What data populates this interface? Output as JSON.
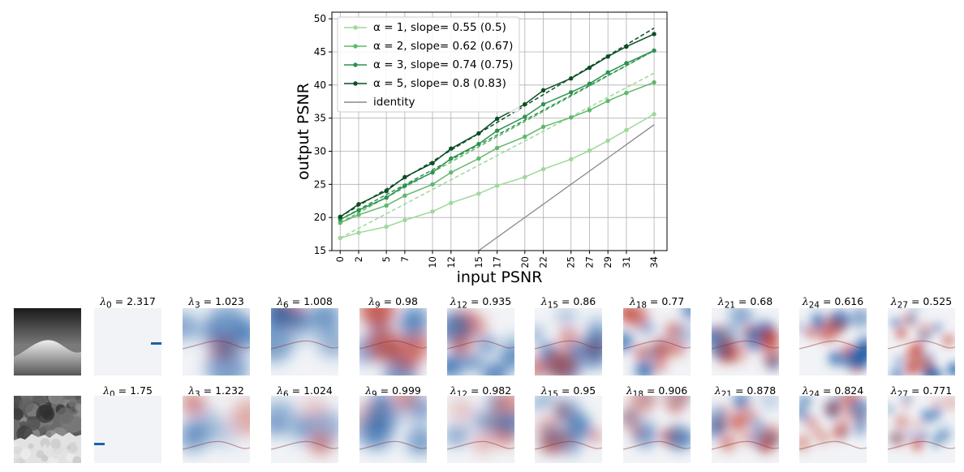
{
  "chart_data": {
    "type": "line",
    "title": "",
    "xlabel": "input PSNR",
    "ylabel": "output PSNR",
    "x": [
      0,
      2,
      5,
      7,
      10,
      12,
      15,
      17,
      20,
      22,
      25,
      27,
      29,
      31,
      34
    ],
    "xtick_labels": [
      "0",
      "2",
      "5",
      "7",
      "10",
      "12",
      "15",
      "17",
      "20",
      "22",
      "25",
      "27",
      "29",
      "31",
      "34"
    ],
    "ylim": [
      15,
      51
    ],
    "yticks": [
      15,
      20,
      25,
      30,
      35,
      40,
      45,
      50
    ],
    "grid": true,
    "legend_position": "top-left",
    "series": [
      {
        "name": "α = 1, slope= 0.55 (0.5)",
        "color": "#9fd89a",
        "values": [
          16.9,
          17.7,
          18.6,
          19.6,
          20.9,
          22.2,
          23.6,
          24.8,
          26.1,
          27.3,
          28.8,
          30.1,
          31.6,
          33.2,
          35.6
        ],
        "fit": [
          16.9,
          41.8
        ]
      },
      {
        "name": "α = 2, slope= 0.62 (0.67)",
        "color": "#5fb86a",
        "values": [
          19.2,
          20.4,
          21.8,
          23.3,
          25.0,
          26.8,
          28.9,
          30.5,
          32.2,
          33.7,
          35.1,
          36.2,
          37.6,
          38.8,
          40.4
        ],
        "fit": [
          19.2,
          45.2
        ]
      },
      {
        "name": "α = 3, slope= 0.74 (0.75)",
        "color": "#2e9150",
        "values": [
          19.7,
          21.1,
          23.0,
          24.8,
          26.8,
          28.9,
          31.1,
          33.1,
          35.2,
          37.1,
          38.9,
          40.2,
          41.9,
          43.3,
          45.2
        ],
        "fit": [
          19.7,
          45.2
        ]
      },
      {
        "name": "α = 5, slope= 0.8 (0.83)",
        "color": "#0b4d25",
        "values": [
          20.1,
          22.0,
          24.0,
          26.1,
          28.2,
          30.4,
          32.7,
          34.9,
          37.1,
          39.2,
          41.0,
          42.6,
          44.3,
          45.8,
          47.7
        ],
        "fit": [
          20.1,
          48.6
        ]
      }
    ],
    "identity": {
      "name": "identity",
      "color": "#888888"
    }
  },
  "image_rows": [
    {
      "source": "smooth",
      "labels": [
        {
          "sub": "0",
          "value": "2.317"
        },
        {
          "sub": "3",
          "value": "1.023"
        },
        {
          "sub": "6",
          "value": "1.008"
        },
        {
          "sub": "9",
          "value": "0.98"
        },
        {
          "sub": "12",
          "value": "0.935"
        },
        {
          "sub": "15",
          "value": "0.86"
        },
        {
          "sub": "18",
          "value": "0.77"
        },
        {
          "sub": "21",
          "value": "0.68"
        },
        {
          "sub": "24",
          "value": "0.616"
        },
        {
          "sub": "27",
          "value": "0.525"
        }
      ]
    },
    {
      "source": "textured",
      "labels": [
        {
          "sub": "0",
          "value": "1.75"
        },
        {
          "sub": "3",
          "value": "1.232"
        },
        {
          "sub": "6",
          "value": "1.024"
        },
        {
          "sub": "9",
          "value": "0.999"
        },
        {
          "sub": "12",
          "value": "0.982"
        },
        {
          "sub": "15",
          "value": "0.95"
        },
        {
          "sub": "18",
          "value": "0.906"
        },
        {
          "sub": "21",
          "value": "0.878"
        },
        {
          "sub": "24",
          "value": "0.824"
        },
        {
          "sub": "27",
          "value": "0.771"
        }
      ]
    }
  ]
}
